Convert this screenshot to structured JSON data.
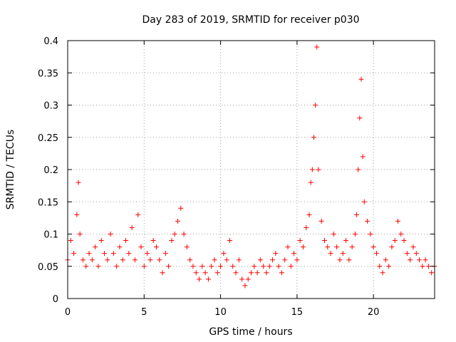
{
  "chart_data": {
    "type": "scatter",
    "title": "Day 283 of 2019, SRMTID for receiver p030",
    "xlabel": "GPS time / hours",
    "ylabel": "SRMTID / TECUs",
    "xlim": [
      0,
      24
    ],
    "ylim": [
      0,
      0.4
    ],
    "xticks": [
      0,
      5,
      10,
      15,
      20
    ],
    "xtick_labels": [
      "0",
      "5",
      "10",
      "15",
      "20"
    ],
    "yticks": [
      0,
      0.05,
      0.1,
      0.15,
      0.2,
      0.25,
      0.3,
      0.35,
      0.4
    ],
    "ytick_labels": [
      "0",
      "0.05",
      "0.1",
      "0.15",
      "0.2",
      "0.25",
      "0.3",
      "0.35",
      "0.4"
    ],
    "grid": true,
    "marker": "+",
    "color": "#ff0000",
    "series": [
      {
        "name": "SRMTID",
        "x": [
          0.0,
          0.2,
          0.4,
          0.6,
          0.7,
          0.8,
          1.0,
          1.2,
          1.4,
          1.6,
          1.8,
          2.0,
          2.2,
          2.4,
          2.6,
          2.8,
          3.0,
          3.2,
          3.4,
          3.6,
          3.8,
          4.0,
          4.2,
          4.4,
          4.6,
          4.8,
          5.0,
          5.2,
          5.4,
          5.6,
          5.8,
          6.0,
          6.2,
          6.4,
          6.6,
          6.8,
          7.0,
          7.2,
          7.4,
          7.6,
          7.8,
          8.0,
          8.2,
          8.4,
          8.6,
          8.8,
          9.0,
          9.2,
          9.4,
          9.6,
          9.8,
          10.0,
          10.2,
          10.4,
          10.6,
          10.8,
          11.0,
          11.2,
          11.4,
          11.6,
          11.8,
          12.0,
          12.2,
          12.4,
          12.6,
          12.8,
          13.0,
          13.2,
          13.4,
          13.6,
          13.8,
          14.0,
          14.2,
          14.4,
          14.6,
          14.8,
          15.0,
          15.2,
          15.4,
          15.6,
          15.8,
          15.9,
          16.0,
          16.1,
          16.2,
          16.3,
          16.4,
          16.6,
          16.8,
          17.0,
          17.2,
          17.4,
          17.6,
          17.8,
          18.0,
          18.2,
          18.4,
          18.6,
          18.8,
          18.9,
          19.0,
          19.1,
          19.2,
          19.3,
          19.4,
          19.6,
          19.8,
          20.0,
          20.2,
          20.4,
          20.6,
          20.8,
          21.0,
          21.2,
          21.4,
          21.6,
          21.8,
          22.0,
          22.2,
          22.4,
          22.6,
          22.8,
          23.0,
          23.2,
          23.4,
          23.6,
          23.8,
          24.0
        ],
        "y": [
          0.06,
          0.09,
          0.07,
          0.13,
          0.18,
          0.1,
          0.06,
          0.05,
          0.07,
          0.06,
          0.08,
          0.05,
          0.09,
          0.07,
          0.06,
          0.1,
          0.07,
          0.05,
          0.08,
          0.06,
          0.09,
          0.07,
          0.11,
          0.06,
          0.13,
          0.08,
          0.05,
          0.07,
          0.06,
          0.09,
          0.08,
          0.06,
          0.04,
          0.07,
          0.05,
          0.09,
          0.1,
          0.12,
          0.14,
          0.1,
          0.08,
          0.06,
          0.05,
          0.04,
          0.03,
          0.05,
          0.04,
          0.03,
          0.05,
          0.06,
          0.04,
          0.05,
          0.07,
          0.06,
          0.09,
          0.05,
          0.04,
          0.06,
          0.03,
          0.02,
          0.03,
          0.04,
          0.05,
          0.04,
          0.06,
          0.05,
          0.04,
          0.05,
          0.06,
          0.07,
          0.05,
          0.04,
          0.06,
          0.08,
          0.05,
          0.07,
          0.06,
          0.09,
          0.08,
          0.11,
          0.13,
          0.18,
          0.2,
          0.25,
          0.3,
          0.39,
          0.2,
          0.12,
          0.09,
          0.08,
          0.07,
          0.1,
          0.08,
          0.06,
          0.07,
          0.09,
          0.06,
          0.08,
          0.1,
          0.13,
          0.2,
          0.28,
          0.34,
          0.22,
          0.15,
          0.12,
          0.1,
          0.08,
          0.07,
          0.05,
          0.04,
          0.06,
          0.05,
          0.08,
          0.09,
          0.12,
          0.1,
          0.09,
          0.07,
          0.06,
          0.08,
          0.07,
          0.06,
          0.05,
          0.06,
          0.05,
          0.04,
          0.05
        ]
      }
    ]
  }
}
